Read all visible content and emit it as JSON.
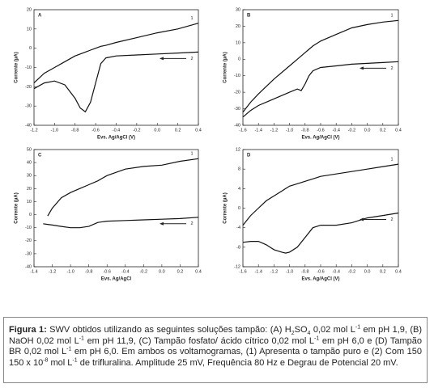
{
  "chart_data": [
    {
      "type": "line",
      "panel": "A",
      "xlabel": "Evs. Ag/AgCl (V)",
      "ylabel": "Corrente (µA)",
      "color": "#111",
      "xlim": [
        -1.2,
        0.4
      ],
      "xticks": [
        -1.2,
        {
          "value": -1,
          "label": "-1.0"
        },
        -0.8,
        -0.6,
        -0.4,
        -0.2,
        {
          "value": 0,
          "label": "0.0"
        },
        0.2,
        0.4
      ],
      "ylim": [
        -40,
        20
      ],
      "yticks": [
        -40,
        -30,
        -20,
        -10,
        0,
        10,
        20
      ],
      "x": [
        -1.2,
        -1.1,
        -1.0,
        -0.9,
        -0.8,
        -0.75,
        -0.7,
        -0.65,
        -0.6,
        -0.55,
        -0.5,
        -0.4,
        -0.2,
        0,
        0.2,
        0.4
      ],
      "series": [
        {
          "name": "1",
          "color": "#111",
          "values": [
            -18,
            -13,
            -10,
            -7,
            -4,
            -3,
            -2,
            -1,
            0,
            1,
            1.5,
            3,
            5.5,
            8,
            10,
            13
          ]
        },
        {
          "name": "2",
          "color": "#111",
          "values": [
            -21,
            -18,
            -17,
            -19,
            -26,
            -31,
            -33,
            -28,
            -18,
            -8,
            -5,
            -4,
            -3.5,
            -3,
            -2.5,
            -2
          ]
        }
      ]
    },
    {
      "type": "line",
      "panel": "B",
      "xlabel": "Evs. Ag/AgCl (V)",
      "ylabel": "Corrente (µA)",
      "color": "#111",
      "xlim": [
        -1.6,
        0.4
      ],
      "xticks": [
        -1.6,
        -1.4,
        -1.2,
        {
          "value": -1,
          "label": "-1.0"
        },
        -0.8,
        -0.6,
        -0.4,
        -0.2,
        {
          "value": 0,
          "label": "0.0"
        },
        0.2,
        0.4
      ],
      "ylim": [
        -40,
        30
      ],
      "yticks": [
        -40,
        -30,
        -20,
        -10,
        0,
        10,
        20,
        30
      ],
      "x": [
        -1.6,
        -1.5,
        -1.4,
        -1.2,
        -1.0,
        -0.9,
        -0.85,
        -0.8,
        -0.75,
        -0.7,
        -0.6,
        -0.4,
        -0.2,
        0,
        0.2,
        0.4
      ],
      "series": [
        {
          "name": "1",
          "color": "#111",
          "values": [
            -32,
            -26,
            -21,
            -12,
            -4,
            0,
            2,
            4,
            6,
            8,
            11,
            15,
            19,
            21,
            22.5,
            23.5
          ]
        },
        {
          "name": "2",
          "color": "#111",
          "values": [
            -35,
            -31,
            -28,
            -24,
            -20,
            -18,
            -19,
            -15,
            -10,
            -7,
            -5,
            -4,
            -3,
            -2.5,
            -2,
            -1.5
          ]
        }
      ]
    },
    {
      "type": "line",
      "panel": "C",
      "xlabel": "Evs. Ag/AgCl",
      "ylabel": "Corrente (µA)",
      "color": "#111",
      "xlim": [
        -1.4,
        0.4
      ],
      "xticks": [
        -1.4,
        -1.2,
        {
          "value": -1,
          "label": "-1.0"
        },
        -0.8,
        -0.6,
        -0.4,
        -0.2,
        {
          "value": 0,
          "label": "0.0"
        },
        0.2,
        0.4
      ],
      "ylim": [
        -40,
        50
      ],
      "yticks": [
        -40,
        -30,
        -20,
        -10,
        0,
        10,
        20,
        30,
        40,
        50
      ],
      "x": [
        -1.3,
        -1.25,
        -1.2,
        -1.1,
        -1.0,
        -0.9,
        -0.8,
        -0.7,
        -0.6,
        -0.4,
        -0.2,
        0,
        0.2,
        0.4
      ],
      "series": [
        {
          "name": "1",
          "color": "#111",
          "values": [
            null,
            -1,
            5,
            13,
            17,
            20,
            23,
            26,
            30,
            35,
            37,
            38,
            41,
            43
          ]
        },
        {
          "name": "2",
          "color": "#111",
          "values": [
            -7,
            -7.5,
            -8,
            -9,
            -10,
            -10,
            -9,
            -6,
            -5,
            -4.5,
            -4,
            -3.5,
            -3,
            -2
          ]
        }
      ]
    },
    {
      "type": "line",
      "panel": "D",
      "xlabel": "Evs. Ag/AgCl (V)",
      "ylabel": "Corrente (µA)",
      "color": "#111",
      "xlim": [
        -1.6,
        0.4
      ],
      "xticks": [
        -1.6,
        -1.4,
        -1.2,
        {
          "value": -1,
          "label": "-1.0"
        },
        -0.8,
        -0.6,
        -0.4,
        -0.2,
        {
          "value": 0,
          "label": "0.0"
        },
        0.2,
        0.4
      ],
      "ylim": [
        -12,
        12
      ],
      "yticks": [
        -12,
        -8,
        -4,
        0,
        4,
        8,
        12
      ],
      "x": [
        -1.6,
        -1.5,
        -1.4,
        -1.3,
        -1.2,
        -1.1,
        -1.05,
        -1.0,
        -0.9,
        -0.8,
        -0.7,
        -0.6,
        -0.4,
        -0.2,
        0,
        0.2,
        0.4
      ],
      "series": [
        {
          "name": "1",
          "color": "#111",
          "values": [
            -3.5,
            -1.5,
            0,
            1.5,
            2.5,
            3.5,
            4,
            4.5,
            5,
            5.5,
            6,
            6.5,
            7,
            7.5,
            8,
            8.5,
            9
          ]
        },
        {
          "name": "2",
          "color": "#111",
          "values": [
            -7,
            -6.8,
            -6.8,
            -7.5,
            -8.5,
            -9,
            -9.2,
            -9,
            -8,
            -6,
            -4,
            -3.5,
            -3.5,
            -3,
            -2,
            -1.5,
            -1
          ]
        }
      ]
    }
  ],
  "caption": {
    "label": "Figura 1:",
    "parts": [
      {
        "text": " SWV obtidos utilizando as seguintes soluções tampão: (A) H"
      },
      {
        "text": "2",
        "pos": "sub"
      },
      {
        "text": "SO"
      },
      {
        "text": "4",
        "pos": "sub"
      },
      {
        "text": " 0,02 mol L"
      },
      {
        "text": "-1",
        "pos": "sup"
      },
      {
        "text": " em pH 1,9, (B) NaOH 0,02 mol L"
      },
      {
        "text": "-1",
        "pos": "sup"
      },
      {
        "text": " em pH 11,9, (C) Tampão fosfato/ ácido cítrico 0,02 mol L"
      },
      {
        "text": "-1",
        "pos": "sup"
      },
      {
        "text": " em pH 6,0 e (D) Tampão BR  0,02 mol L"
      },
      {
        "text": "-1",
        "pos": "sup"
      },
      {
        "text": " em pH 6,0. Em ambos os voltamogramas, (1) Apresenta o tampão puro e (2) Com 150 150 x 10"
      },
      {
        "text": "-8",
        "pos": "sup"
      },
      {
        "text": " mol L"
      },
      {
        "text": "-1",
        "pos": "sup"
      },
      {
        "text": " de trifluralina. Amplitude 25 mV, Frequência 80 Hz e Degrau de Potencial 20 mV."
      }
    ]
  }
}
